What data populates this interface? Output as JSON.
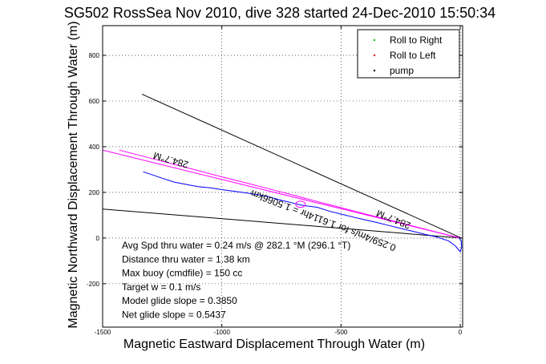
{
  "chart_data": {
    "type": "line",
    "title": "SG502 RossSea Nov 2010, dive 328 started 24-Dec-2010 15:50:34",
    "xlabel": "Magnetic Eastward Displacement Through Water (m)",
    "ylabel": "Magnetic Northward Displacement Through Water (m)",
    "xlim": [
      -1500,
      10
    ],
    "ylim": [
      -390,
      930
    ],
    "xticks": [
      -1500,
      -1000,
      -500,
      0
    ],
    "xticklabels": [
      "-1500",
      "-1000",
      "-500",
      "0"
    ],
    "yticks": [
      -200,
      0,
      200,
      400,
      600,
      800
    ],
    "yticklabels": [
      "-200",
      "0",
      "200",
      "400",
      "600",
      "800"
    ],
    "grid": true,
    "legend_position": "top-right",
    "legend": [
      {
        "label": "Roll to Right",
        "color": "#00cc00",
        "marker": "."
      },
      {
        "label": "Roll to Left",
        "color": "#ff0000",
        "marker": "."
      },
      {
        "label": "pump",
        "color": "#000000",
        "marker": "."
      }
    ],
    "series": [
      {
        "color": "#0000ff",
        "x": [
          -1330,
          -1300,
          -1250,
          -1200,
          -1150,
          -1100,
          -1050,
          -1000,
          -950,
          -900,
          -850,
          -800,
          -760,
          -720,
          -690,
          -670,
          -640,
          -600,
          -550,
          -500,
          -450,
          -400,
          -350,
          -300,
          -250,
          -200,
          -150,
          -100,
          -50,
          -20,
          0,
          6,
          4,
          -5
        ],
        "y": [
          290,
          280,
          262,
          245,
          235,
          225,
          220,
          212,
          205,
          198,
          190,
          180,
          168,
          158,
          150,
          145,
          140,
          135,
          118,
          105,
          92,
          80,
          68,
          55,
          42,
          30,
          17,
          5,
          -12,
          -35,
          -60,
          -40,
          -10,
          0
        ]
      },
      {
        "color": "#ff00ff",
        "x": [
          -1430,
          -1300,
          -1150,
          -1000,
          -900,
          -800,
          -700,
          -600,
          -500,
          -400,
          -300,
          -200,
          -100,
          -20,
          -5
        ],
        "y": [
          385,
          350,
          309,
          268,
          242,
          215,
          188,
          160,
          133,
          106,
          80,
          53,
          26,
          5,
          0
        ]
      }
    ],
    "lines": [
      {
        "x": [
          -1335,
          5
        ],
        "y": [
          630,
          0
        ],
        "color": "#000000"
      },
      {
        "x": [
          -1500,
          5
        ],
        "y": [
          127,
          0
        ],
        "color": "#000000"
      },
      {
        "x": [
          -1500,
          0
        ],
        "y": [
          385,
          0
        ],
        "color": "#ff00ff"
      }
    ],
    "heading_labels": [
      {
        "text": "284.7°M",
        "x": -1210,
        "y": 355,
        "angle": 196
      },
      {
        "text": "284.7°M",
        "x": -275,
        "y": 95,
        "angle": 202
      },
      {
        "text": "0.259/4m/s for 1.6114hr = 1.5066km",
        "x": -570,
        "y": 90,
        "angle": 201
      }
    ],
    "annotations": [
      "Avg Spd thru water =  0.24 m/s @ 282.1 °M (296.1 °T)",
      "Distance thru water =  1.38 km",
      "Max buoy (cmdfile) = 150 cc",
      "Target w = 0.1 m/s",
      "Model glide slope = 0.3850",
      "Net glide slope = 0.5437"
    ]
  }
}
